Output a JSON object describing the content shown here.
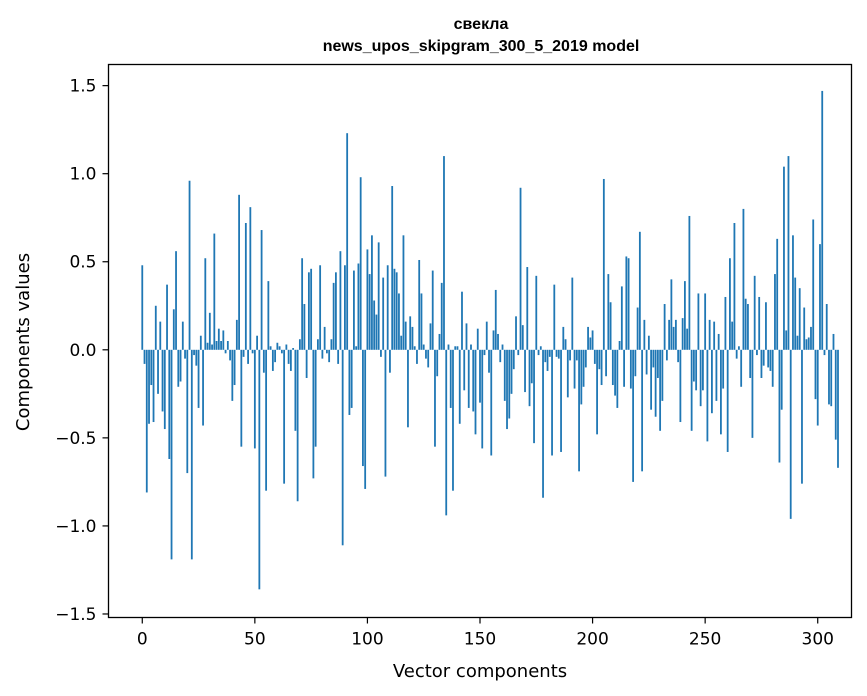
{
  "chart_data": {
    "type": "bar",
    "title": "свекла",
    "subtitle": "news_upos_skipgram_300_5_2019 model",
    "xlabel": "Vector components",
    "ylabel": "Components values",
    "xlim": [
      -15,
      315
    ],
    "ylim": [
      -1.52,
      1.62
    ],
    "x_ticks": [
      0,
      50,
      100,
      150,
      200,
      250,
      300
    ],
    "y_ticks": [
      -1.5,
      -1.0,
      -0.5,
      0.0,
      0.5,
      1.0,
      1.5
    ],
    "x_tick_labels": [
      "0",
      "50",
      "100",
      "150",
      "200",
      "250",
      "300"
    ],
    "y_tick_labels": [
      "−1.5",
      "−1.0",
      "−0.5",
      "0.0",
      "0.5",
      "1.0",
      "1.5"
    ],
    "bar_color": "#1f77b4",
    "grid": false,
    "series": [
      {
        "values": [
          0.48,
          -0.08,
          -0.81,
          -0.42,
          -0.2,
          -0.41,
          0.25,
          -0.25,
          0.16,
          -0.35,
          -0.45,
          0.37,
          -0.62,
          -1.19,
          0.23,
          0.56,
          -0.21,
          -0.18,
          0.16,
          -0.05,
          -0.7,
          0.96,
          -1.19,
          -0.03,
          -0.09,
          -0.33,
          0.08,
          -0.43,
          0.52,
          0.04,
          0.21,
          0.03,
          0.66,
          0.05,
          0.12,
          0.05,
          0.11,
          -0.02,
          0.05,
          -0.06,
          -0.29,
          -0.2,
          0.17,
          0.88,
          -0.55,
          -0.04,
          0.72,
          -0.08,
          0.81,
          -0.02,
          -0.56,
          0.08,
          -1.36,
          0.68,
          -0.13,
          -0.8,
          0.39,
          0.02,
          -0.12,
          -0.07,
          0.04,
          0.02,
          -0.02,
          -0.76,
          0.03,
          -0.08,
          -0.12,
          0.01,
          -0.46,
          -0.86,
          0.06,
          0.52,
          0.26,
          -0.16,
          0.44,
          0.46,
          -0.73,
          -0.55,
          0.06,
          0.48,
          -0.05,
          0.13,
          -0.02,
          -0.07,
          0.06,
          0.38,
          0.44,
          -0.08,
          0.56,
          -1.11,
          0.48,
          1.23,
          -0.37,
          -0.33,
          0.45,
          0.02,
          0.49,
          0.98,
          -0.66,
          -0.79,
          0.57,
          0.43,
          0.65,
          0.28,
          0.2,
          0.61,
          -0.04,
          0.41,
          -0.72,
          0.48,
          -0.13,
          0.93,
          0.46,
          0.44,
          0.32,
          0.08,
          0.65,
          0.16,
          -0.44,
          0.19,
          0.13,
          0.02,
          -0.08,
          0.51,
          0.32,
          0.03,
          -0.05,
          -0.1,
          0.15,
          0.45,
          -0.55,
          -0.15,
          0.09,
          0.38,
          1.1,
          -0.94,
          0.03,
          -0.33,
          -0.8,
          0.02,
          0.02,
          -0.42,
          0.33,
          -0.23,
          0.15,
          -0.33,
          0.03,
          -0.35,
          -0.48,
          0.12,
          -0.3,
          -0.56,
          -0.03,
          0.16,
          -0.13,
          -0.6,
          0.11,
          0.34,
          0.09,
          -0.07,
          0.03,
          -0.29,
          -0.45,
          -0.39,
          -0.25,
          -0.11,
          0.19,
          -0.03,
          0.92,
          0.14,
          -0.24,
          0.47,
          -0.32,
          -0.19,
          -0.53,
          0.42,
          -0.03,
          0.02,
          -0.84,
          -0.07,
          -0.12,
          -0.04,
          -0.6,
          0.37,
          -0.04,
          -0.05,
          -0.58,
          0.13,
          0.06,
          -0.27,
          -0.06,
          0.41,
          -0.22,
          -0.06,
          -0.69,
          -0.31,
          -0.21,
          -0.1,
          0.13,
          0.07,
          0.11,
          -0.08,
          -0.48,
          -0.11,
          -0.2,
          0.97,
          -0.15,
          0.43,
          0.27,
          -0.2,
          -0.26,
          -0.33,
          0.05,
          0.36,
          -0.21,
          0.53,
          0.52,
          -0.22,
          -0.75,
          -0.15,
          0.24,
          0.67,
          -0.69,
          0.17,
          -0.14,
          0.08,
          -0.34,
          -0.1,
          -0.38,
          -0.16,
          -0.46,
          -0.29,
          0.26,
          -0.06,
          0.17,
          0.4,
          0.13,
          0.17,
          -0.07,
          -0.41,
          0.18,
          0.39,
          0.12,
          0.76,
          -0.46,
          -0.18,
          -0.23,
          0.32,
          -0.32,
          -0.23,
          0.32,
          -0.52,
          0.17,
          -0.36,
          0.16,
          -0.29,
          0.09,
          -0.48,
          -0.22,
          0.3,
          -0.58,
          0.52,
          0.16,
          0.72,
          -0.05,
          0.02,
          -0.21,
          0.8,
          0.29,
          0.26,
          -0.16,
          -0.5,
          0.42,
          -0.03,
          0.3,
          -0.16,
          -0.09,
          0.27,
          -0.1,
          -0.12,
          -0.21,
          0.43,
          0.63,
          -0.64,
          -0.34,
          1.04,
          0.11,
          1.1,
          -0.96,
          0.65,
          0.41,
          0.08,
          0.35,
          -0.76,
          0.24,
          0.06,
          0.07,
          0.13,
          0.74,
          -0.28,
          -0.43,
          0.6,
          1.47,
          -0.03,
          0.26,
          -0.31,
          -0.32,
          0.09,
          -0.51,
          -0.67
        ]
      }
    ]
  }
}
